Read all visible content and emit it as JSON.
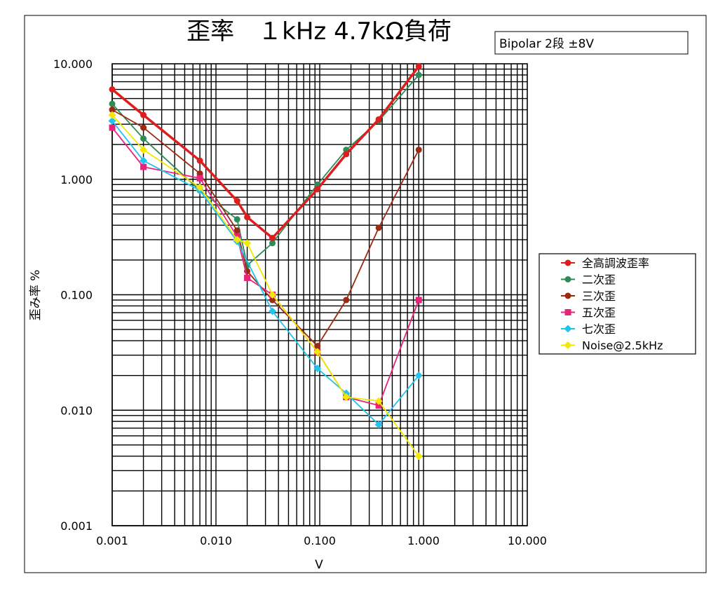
{
  "chart_data": {
    "type": "line",
    "title": "歪率　１kHz 4.7kΩ負荷",
    "subtitle": "Bipolar 2段  ±8V",
    "xlabel": "V",
    "ylabel": "歪み率 %",
    "xscale": "log",
    "yscale": "log",
    "xlim": [
      0.001,
      10
    ],
    "ylim": [
      0.001,
      10
    ],
    "x_ticks": [
      "0.001",
      "0.010",
      "0.100",
      "1.000",
      "10.000"
    ],
    "y_ticks": [
      "0.001",
      "0.010",
      "0.100",
      "1.000",
      "10.000"
    ],
    "grid": true,
    "legend_position": "right",
    "series": [
      {
        "name": "全高調波歪率",
        "color": "#dd1e1e",
        "width": 3.5,
        "x": [
          0.001,
          0.002,
          0.007,
          0.016,
          0.02,
          0.035,
          0.095,
          0.18,
          0.37,
          0.9
        ],
        "y": [
          6.0,
          3.6,
          1.45,
          0.65,
          0.47,
          0.31,
          0.82,
          1.65,
          3.3,
          9.5
        ]
      },
      {
        "name": "二次歪",
        "color": "#2e8b57",
        "width": 1.8,
        "x": [
          0.001,
          0.002,
          0.007,
          0.016,
          0.02,
          0.035,
          0.095,
          0.18,
          0.37,
          0.9
        ],
        "y": [
          4.5,
          2.25,
          0.8,
          0.45,
          0.18,
          0.28,
          0.9,
          1.8,
          3.2,
          8.0
        ]
      },
      {
        "name": "三次歪",
        "color": "#9b2a12",
        "width": 1.8,
        "x": [
          0.001,
          0.002,
          0.007,
          0.016,
          0.02,
          0.035,
          0.095,
          0.18,
          0.37,
          0.9
        ],
        "y": [
          4.0,
          2.8,
          1.12,
          0.36,
          0.16,
          0.09,
          0.036,
          0.09,
          0.38,
          1.8
        ]
      },
      {
        "name": "五次歪",
        "color": "#e8237a",
        "width": 1.8,
        "x": [
          0.001,
          0.002,
          0.007,
          0.016,
          0.02,
          0.035,
          0.095,
          0.18,
          0.37,
          0.9
        ],
        "y": [
          2.8,
          1.28,
          1.02,
          0.32,
          0.14,
          0.1,
          0.032,
          0.013,
          0.011,
          0.09
        ]
      },
      {
        "name": "七次歪",
        "color": "#22c3ec",
        "width": 1.8,
        "x": [
          0.001,
          0.002,
          0.007,
          0.016,
          0.035,
          0.095,
          0.18,
          0.37,
          0.9
        ],
        "y": [
          3.2,
          1.45,
          0.8,
          0.29,
          0.072,
          0.023,
          0.014,
          0.0075,
          0.02
        ]
      },
      {
        "name": "Noise@2.5kHz",
        "color": "#f3e800",
        "width": 1.8,
        "x": [
          0.001,
          0.002,
          0.007,
          0.016,
          0.02,
          0.035,
          0.095,
          0.18,
          0.37,
          0.9
        ],
        "y": [
          3.6,
          1.8,
          0.85,
          0.3,
          0.28,
          0.1,
          0.032,
          0.013,
          0.012,
          0.004
        ]
      }
    ]
  }
}
